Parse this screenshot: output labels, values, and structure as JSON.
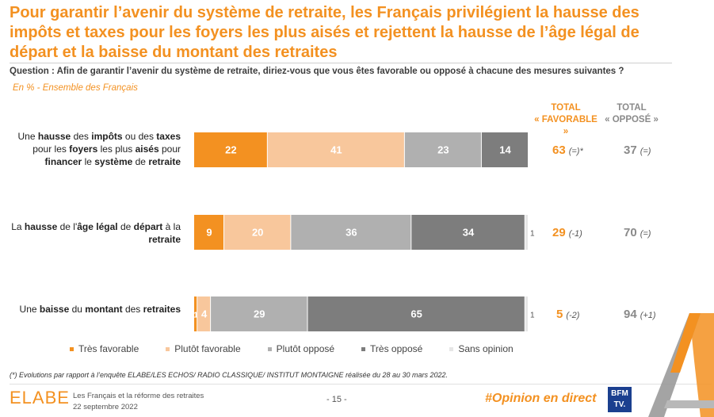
{
  "title": "Pour garantir l’avenir du système de retraite, les Français privilégient la hausse des impôts et taxes pour les foyers les plus aisés et rejettent la hausse de l’âge légal de départ et la baisse du montant des retraites",
  "question": "Question : Afin de garantir l’avenir du système de retraite, diriez-vous que vous êtes favorable ou opposé à chacune des mesures suivantes ?",
  "subtitle": "En % - Ensemble des Français",
  "headers": {
    "fav_line1": "TOTAL",
    "fav_line2": "« FAVORABLE »",
    "opp_line1": "TOTAL",
    "opp_line2": "« OPPOSÉ »"
  },
  "rows": [
    {
      "label_parts": [
        [
          "Une ",
          false
        ],
        [
          "hausse",
          true
        ],
        [
          " des ",
          false
        ],
        [
          "impôts",
          true
        ],
        [
          " ou des ",
          false
        ],
        [
          "taxes",
          true
        ],
        [
          " pour les ",
          false
        ],
        [
          "foyers",
          true
        ],
        [
          " les plus ",
          false
        ],
        [
          "aisés",
          true
        ],
        [
          " pour ",
          false
        ],
        [
          "financer",
          true
        ],
        [
          " le ",
          false
        ],
        [
          "système",
          true
        ],
        [
          " de ",
          false
        ],
        [
          "retraite",
          true
        ]
      ],
      "total_favorable": "63",
      "evo_favorable": "(=)*",
      "total_oppose": "37",
      "evo_oppose": "(=)"
    },
    {
      "label_parts": [
        [
          "La ",
          false
        ],
        [
          "hausse",
          true
        ],
        [
          " de l'",
          false
        ],
        [
          "âge légal",
          true
        ],
        [
          " de ",
          false
        ],
        [
          "départ",
          true
        ],
        [
          " à la ",
          false
        ],
        [
          "retraite",
          true
        ]
      ],
      "total_favorable": "29",
      "evo_favorable": "(-1)",
      "total_oppose": "70",
      "evo_oppose": "(=)"
    },
    {
      "label_parts": [
        [
          "Une ",
          false
        ],
        [
          "baisse",
          true
        ],
        [
          " du ",
          false
        ],
        [
          "montant",
          true
        ],
        [
          " des ",
          false
        ],
        [
          "retraites",
          true
        ]
      ],
      "total_favorable": "5",
      "evo_favorable": "(-2)",
      "total_oppose": "94",
      "evo_oppose": "(+1)"
    }
  ],
  "chart_data": {
    "type": "bar",
    "orientation": "horizontal",
    "stacked": true,
    "categories": [
      "Une hausse des impôts ou des taxes pour les foyers les plus aisés pour financer le système de retraite",
      "La hausse de l'âge légal de départ à la retraite",
      "Une baisse du montant des retraites"
    ],
    "series": [
      {
        "name": "Très favorable",
        "values": [
          22,
          9,
          1
        ],
        "color": "#f39121",
        "label_color": "#ffffff"
      },
      {
        "name": "Plutôt favorable",
        "values": [
          41,
          20,
          4
        ],
        "color": "#f8c79c",
        "label_color": "#ffffff"
      },
      {
        "name": "Plutôt opposé",
        "values": [
          23,
          36,
          29
        ],
        "color": "#b0b0b0",
        "label_color": "#ffffff"
      },
      {
        "name": "Très opposé",
        "values": [
          14,
          34,
          65
        ],
        "color": "#7d7d7d",
        "label_color": "#ffffff"
      },
      {
        "name": "Sans opinion",
        "values": [
          0,
          1,
          1
        ],
        "color": "#e6e6e6",
        "label_color": "#555555"
      }
    ],
    "xlim": [
      0,
      100
    ],
    "legend": "bottom"
  },
  "footnote": "(*) Evolutions par rapport à l’enquête ELABE/LES ECHOS/ RADIO CLASSIQUE/ INSTITUT MONTAIGNE réalisée du 28 au 30 mars 2022.",
  "footer": {
    "logo": "ELABE",
    "study_title": "Les Français et la réforme des retraites",
    "study_date": "22 septembre 2022",
    "page": "- 15 -",
    "hashtag": "#Opinion en direct",
    "bfm_line1": "BFM",
    "bfm_line2": "TV."
  }
}
